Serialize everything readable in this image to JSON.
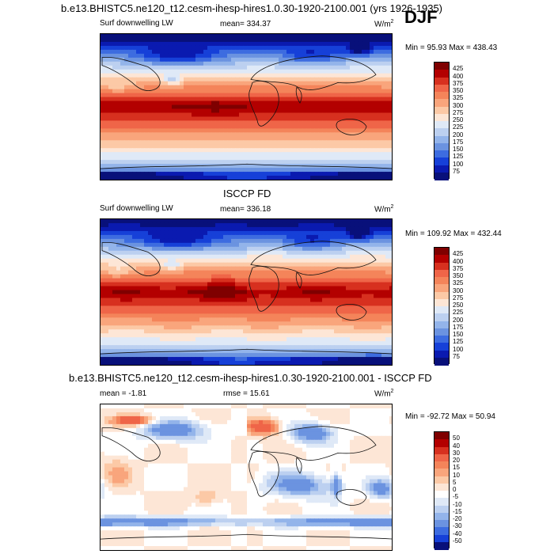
{
  "header": {
    "title": "b.e13.BHISTC5.ne120_t12.cesm-ihesp-hires1.0.30-1920-2100.001 (yrs 1926-1935)",
    "season": "DJF"
  },
  "panels": [
    {
      "id": "model",
      "variable": "Surf downwelling LW",
      "mean": "mean= 334.37",
      "units_base": "W/m",
      "units_exp": "2",
      "minmax": "Min =  95.93 Max = 438.43",
      "colorbar_labels": [
        "425",
        "400",
        "375",
        "350",
        "325",
        "300",
        "275",
        "250",
        "225",
        "200",
        "175",
        "150",
        "125",
        "100",
        "75"
      ],
      "colors": [
        "#7f0000",
        "#b30000",
        "#d7301f",
        "#ef6548",
        "#f4845a",
        "#f9a57c",
        "#fcc9a6",
        "#fde6d6",
        "#dfe9f7",
        "#bcd0f0",
        "#93b4ea",
        "#6b93e0",
        "#3d6ce0",
        "#1640d8",
        "#0a1ab0",
        "#08107a"
      ]
    },
    {
      "id": "obs",
      "heading": "ISCCP FD",
      "variable": "Surf downwelling LW",
      "mean": "mean= 336.18",
      "units_base": "W/m",
      "units_exp": "2",
      "minmax": "Min = 109.92 Max = 432.44",
      "colorbar_labels": [
        "425",
        "400",
        "375",
        "350",
        "325",
        "300",
        "275",
        "250",
        "225",
        "200",
        "175",
        "150",
        "125",
        "100",
        "75"
      ],
      "colors": [
        "#7f0000",
        "#b30000",
        "#d7301f",
        "#ef6548",
        "#f4845a",
        "#f9a57c",
        "#fcc9a6",
        "#fde6d6",
        "#dfe9f7",
        "#bcd0f0",
        "#93b4ea",
        "#6b93e0",
        "#3d6ce0",
        "#1640d8",
        "#0a1ab0",
        "#08107a"
      ]
    },
    {
      "id": "diff",
      "heading": "b.e13.BHISTC5.ne120_t12.cesm-ihesp-hires1.0.30-1920-2100.001 - ISCCP FD",
      "mean": "mean =  -1.81",
      "rmse": "rmse =  15.61",
      "units_base": "W/m",
      "units_exp": "2",
      "minmax": "Min = -92.72 Max =  50.94",
      "colorbar_labels": [
        "50",
        "40",
        "30",
        "20",
        "15",
        "10",
        "5",
        "0",
        "-5",
        "-10",
        "-15",
        "-20",
        "-30",
        "-40",
        "-50"
      ],
      "colors": [
        "#7f0000",
        "#b30000",
        "#d7301f",
        "#ef6548",
        "#f4845a",
        "#f9a57c",
        "#fcc9a6",
        "#fde6d6",
        "#ffffff",
        "#dfe9f7",
        "#bcd0f0",
        "#93b4ea",
        "#6b93e0",
        "#3d6ce0",
        "#1640d8",
        "#08107a"
      ]
    }
  ],
  "chart_data": [
    {
      "type": "heatmap",
      "title": "Surf downwelling LW (model, DJF)",
      "units": "W/m2",
      "mean": 334.37,
      "min": 95.93,
      "max": 438.43,
      "levels": [
        75,
        100,
        125,
        150,
        175,
        200,
        225,
        250,
        275,
        300,
        325,
        350,
        375,
        400,
        425
      ]
    },
    {
      "type": "heatmap",
      "title": "ISCCP FD Surf downwelling LW (DJF)",
      "units": "W/m2",
      "mean": 336.18,
      "min": 109.92,
      "max": 432.44,
      "levels": [
        75,
        100,
        125,
        150,
        175,
        200,
        225,
        250,
        275,
        300,
        325,
        350,
        375,
        400,
        425
      ]
    },
    {
      "type": "heatmap",
      "title": "Model - ISCCP FD (DJF)",
      "units": "W/m2",
      "mean": -1.81,
      "rmse": 15.61,
      "min": -92.72,
      "max": 50.94,
      "levels": [
        -50,
        -40,
        -30,
        -20,
        -15,
        -10,
        -5,
        0,
        5,
        10,
        15,
        20,
        30,
        40,
        50
      ]
    }
  ]
}
